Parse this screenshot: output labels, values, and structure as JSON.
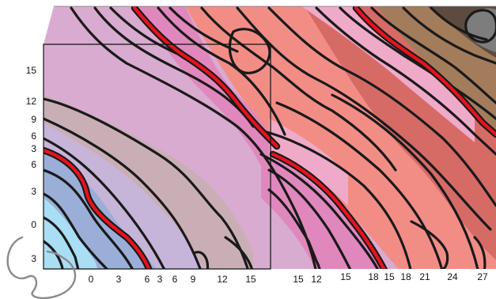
{
  "map": {
    "left_axis_labels": [
      "15",
      "12",
      "9",
      "6",
      "3",
      "6",
      "3",
      "0",
      "3"
    ],
    "bottom_axis_labels": [
      "0",
      "3",
      "6",
      "3",
      "6",
      "9",
      "12",
      "15",
      "15",
      "12",
      "15",
      "18",
      "15",
      "18",
      "21",
      "24",
      "27"
    ],
    "colors": {
      "cyan_band": "#a9def5",
      "blue_band": "#9aaed7",
      "lavender_band": "#c6b4d9",
      "taupe_band": "#c9afb5",
      "pink_band": "#d9abd0",
      "magenta_band": "#e088bd",
      "light_pink_band": "#f0aac9",
      "salmon_band": "#f28d86",
      "coral_band": "#ef7f7d",
      "red_brown_band": "#d66b66",
      "tan_band": "#a37c5c",
      "dark_brown_band": "#5e4b3f",
      "grey_band": "#7d7d7d",
      "contour_line": "#1a1a1a",
      "index_contour": "#e8121c"
    }
  }
}
